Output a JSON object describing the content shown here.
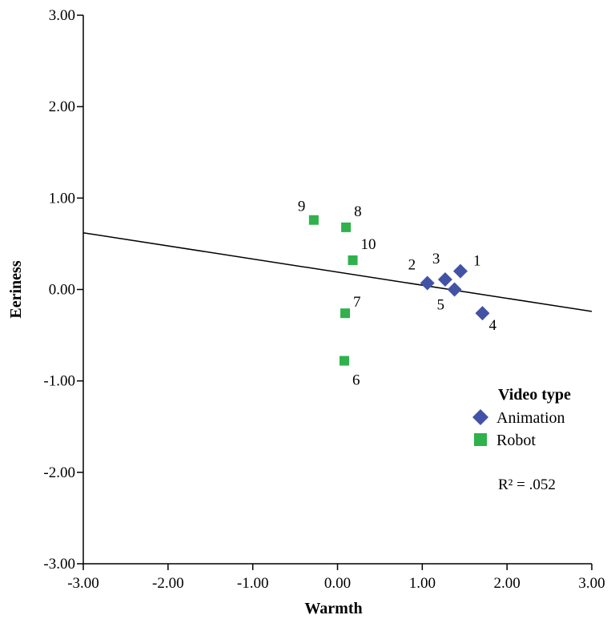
{
  "chart_data": {
    "type": "scatter",
    "xlabel": "Warmth",
    "ylabel": "Eeriness",
    "xlim": [
      -3,
      3
    ],
    "ylim": [
      -3,
      3
    ],
    "x_ticks": [
      {
        "value": -3,
        "label": "-3.00"
      },
      {
        "value": -2,
        "label": "-2.00"
      },
      {
        "value": -1,
        "label": "-1.00"
      },
      {
        "value": 0,
        "label": "0.00"
      },
      {
        "value": 1,
        "label": "1.00"
      },
      {
        "value": 2,
        "label": "2.00"
      },
      {
        "value": 3,
        "label": "3.00"
      }
    ],
    "y_ticks": [
      {
        "value": -3,
        "label": "-3.00"
      },
      {
        "value": -2,
        "label": "-2.00"
      },
      {
        "value": -1,
        "label": "-1.00"
      },
      {
        "value": 0,
        "label": "0.00"
      },
      {
        "value": 1,
        "label": "1.00"
      },
      {
        "value": 2,
        "label": "2.00"
      },
      {
        "value": 3,
        "label": "3.00"
      }
    ],
    "grid": false,
    "legend": {
      "title": "Video type",
      "placement": "bottom-right",
      "entries": [
        {
          "name": "Animation",
          "marker": "diamond",
          "color": "#4253a6"
        },
        {
          "name": "Robot",
          "marker": "square",
          "color": "#2fb14b"
        }
      ]
    },
    "series": [
      {
        "name": "Animation",
        "marker": "diamond",
        "color": "#4253a6",
        "points": [
          {
            "label": "1",
            "x": 1.45,
            "y": 0.2
          },
          {
            "label": "2",
            "x": 1.06,
            "y": 0.07
          },
          {
            "label": "3",
            "x": 1.27,
            "y": 0.11
          },
          {
            "label": "4",
            "x": 1.71,
            "y": -0.26
          },
          {
            "label": "5",
            "x": 1.38,
            "y": 0.0
          }
        ]
      },
      {
        "name": "Robot",
        "marker": "square",
        "color": "#2fb14b",
        "points": [
          {
            "label": "6",
            "x": 0.08,
            "y": -0.78
          },
          {
            "label": "7",
            "x": 0.09,
            "y": -0.26
          },
          {
            "label": "8",
            "x": 0.1,
            "y": 0.68
          },
          {
            "label": "9",
            "x": -0.28,
            "y": 0.76
          },
          {
            "label": "10",
            "x": 0.18,
            "y": 0.32
          }
        ]
      }
    ],
    "fit_line": {
      "type": "linear",
      "x": [
        -3,
        3
      ],
      "y": [
        0.62,
        -0.24
      ],
      "color": "#000000"
    },
    "annotations": [
      {
        "text": "R² = .052"
      }
    ]
  }
}
